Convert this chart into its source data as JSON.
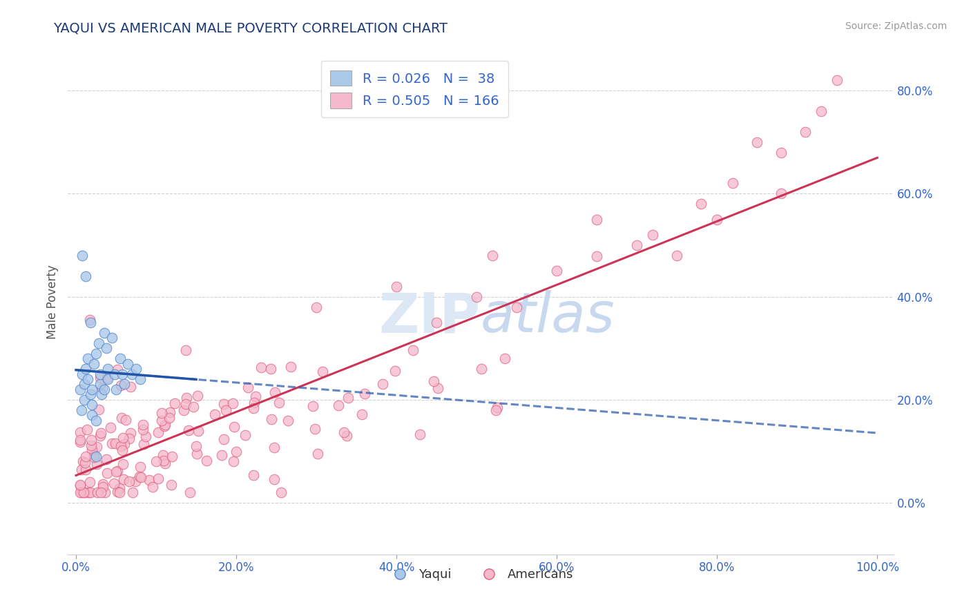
{
  "title": "YAQUI VS AMERICAN MALE POVERTY CORRELATION CHART",
  "source": "Source: ZipAtlas.com",
  "ylabel": "Male Poverty",
  "xticklabels": [
    "0.0%",
    "20.0%",
    "40.0%",
    "60.0%",
    "80.0%",
    "100.0%"
  ],
  "yticklabels": [
    "0.0%",
    "20.0%",
    "40.0%",
    "60.0%",
    "80.0%"
  ],
  "ytick_positions": [
    0.0,
    0.2,
    0.4,
    0.6,
    0.8
  ],
  "xtick_positions": [
    0.0,
    0.2,
    0.4,
    0.6,
    0.8,
    1.0
  ],
  "yaqui_R": 0.026,
  "yaqui_N": 38,
  "american_R": 0.505,
  "american_N": 166,
  "yaqui_fill_color": "#aac8e8",
  "yaqui_edge_color": "#5588cc",
  "american_fill_color": "#f5b8cc",
  "american_edge_color": "#e06080",
  "yaqui_line_color": "#2255aa",
  "american_line_color": "#cc3355",
  "background_color": "#ffffff",
  "grid_color": "#cccccc",
  "title_color": "#1a3a7a",
  "tick_color": "#3366cc",
  "watermark_color": "#dde8f5",
  "legend_text_color": "#3366cc",
  "xlim": [
    -0.01,
    1.02
  ],
  "ylim": [
    -0.1,
    0.88
  ]
}
